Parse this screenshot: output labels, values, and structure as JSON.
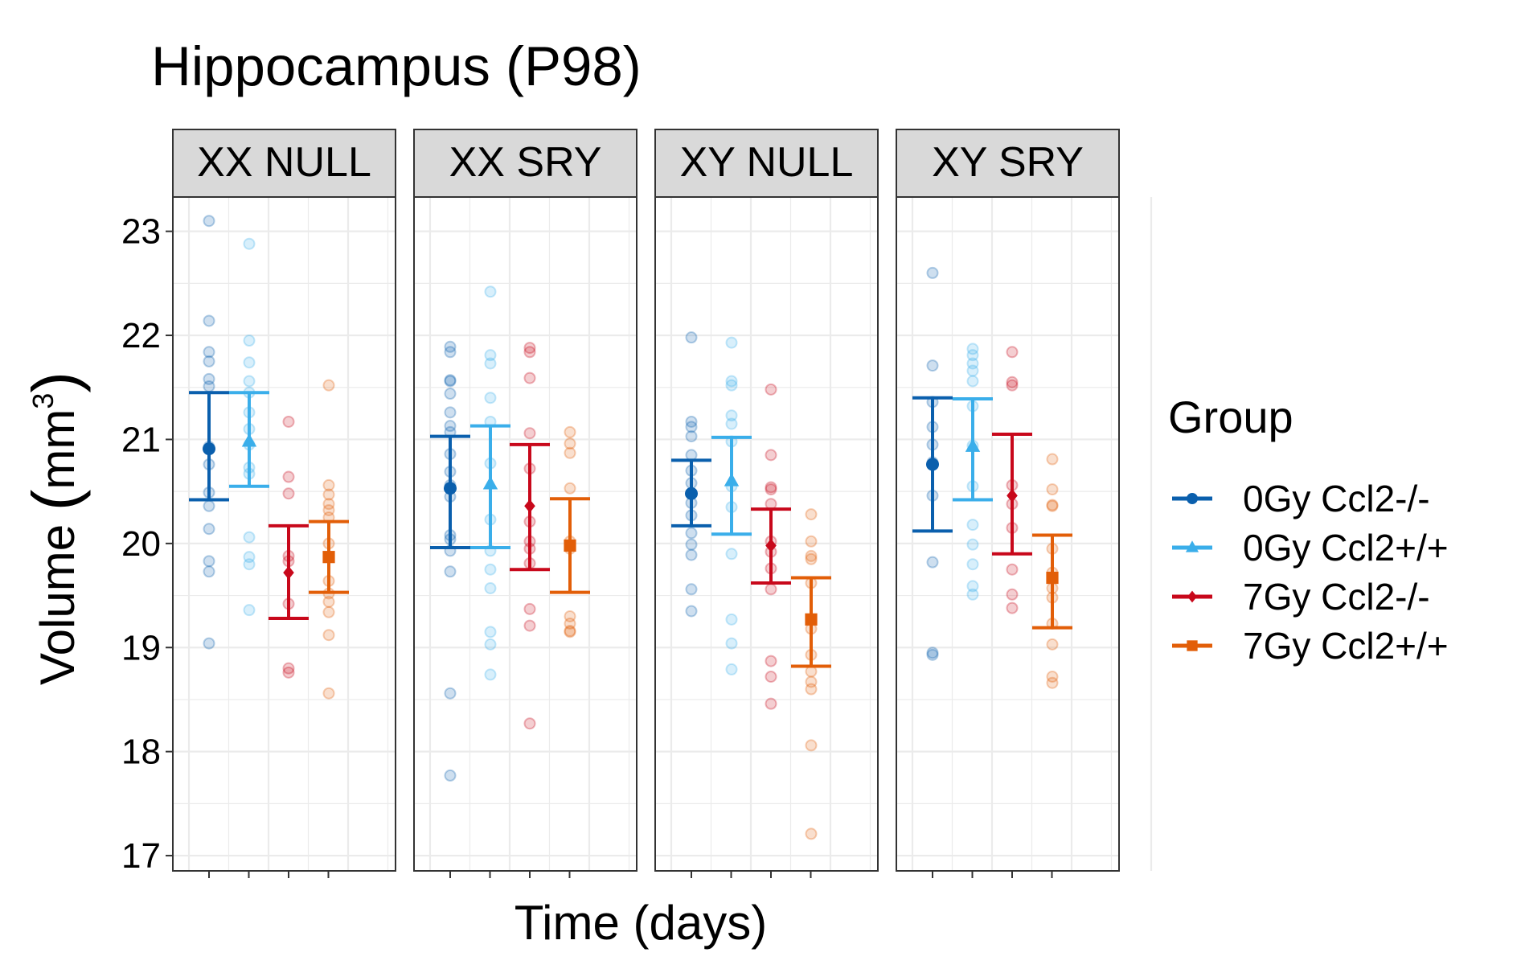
{
  "chart_data": {
    "type": "scatter",
    "title": "Hippocampus (P98)",
    "xlabel": "Time (days)",
    "ylabel": "Volume (mm3)",
    "ylabel_main": "Volume ",
    "ylabel_unit": "mm",
    "ylabel_sup": "3",
    "ylim": [
      16.9,
      23.4
    ],
    "yticks": [
      "17",
      "18",
      "19",
      "20",
      "21",
      "22",
      "23"
    ],
    "grid": true,
    "legend": {
      "title": "Group",
      "position": "right"
    },
    "panels": [
      "XX NULL",
      "XX SRY",
      "XY NULL",
      "XY SRY"
    ],
    "series": [
      {
        "name": "0Gy Ccl2-/-",
        "color": "#0a5fad",
        "marker": "circle"
      },
      {
        "name": "0Gy Ccl2+/+",
        "color": "#3aaeea",
        "marker": "triangle"
      },
      {
        "name": "7Gy Ccl2-/-",
        "color": "#c8081b",
        "marker": "diamond"
      },
      {
        "name": "7Gy Ccl2+/+",
        "color": "#e25e08",
        "marker": "square"
      }
    ],
    "summary": [
      [
        {
          "mean": 20.91,
          "lower": 20.42,
          "upper": 21.45
        },
        {
          "mean": 20.98,
          "lower": 20.55,
          "upper": 21.45
        },
        {
          "mean": 19.72,
          "lower": 19.28,
          "upper": 20.17
        },
        {
          "mean": 19.87,
          "lower": 19.53,
          "upper": 20.21
        }
      ],
      [
        {
          "mean": 20.53,
          "lower": 19.96,
          "upper": 21.03
        },
        {
          "mean": 20.57,
          "lower": 19.96,
          "upper": 21.13
        },
        {
          "mean": 20.36,
          "lower": 19.75,
          "upper": 20.95
        },
        {
          "mean": 19.98,
          "lower": 19.53,
          "upper": 20.43
        }
      ],
      [
        {
          "mean": 20.48,
          "lower": 20.17,
          "upper": 20.8
        },
        {
          "mean": 20.6,
          "lower": 20.09,
          "upper": 21.02
        },
        {
          "mean": 19.98,
          "lower": 19.62,
          "upper": 20.33
        },
        {
          "mean": 19.27,
          "lower": 18.82,
          "upper": 19.67
        }
      ],
      [
        {
          "mean": 20.76,
          "lower": 20.12,
          "upper": 21.4
        },
        {
          "mean": 20.93,
          "lower": 20.42,
          "upper": 21.39
        },
        {
          "mean": 20.46,
          "lower": 19.9,
          "upper": 21.05
        },
        {
          "mean": 19.67,
          "lower": 19.19,
          "upper": 20.08
        }
      ]
    ],
    "points": [
      [
        [
          23.1,
          22.14,
          21.84,
          21.75,
          21.58,
          21.51,
          20.93,
          20.76,
          20.49,
          20.36,
          20.14,
          19.83,
          19.73,
          19.04
        ],
        [
          22.88,
          21.95,
          21.74,
          21.56,
          21.45,
          21.26,
          21.1,
          20.95,
          20.73,
          20.67,
          20.06,
          19.87,
          19.8,
          19.36
        ],
        [
          21.17,
          20.64,
          20.48,
          19.88,
          19.83,
          19.42,
          18.8,
          18.76
        ],
        [
          21.52,
          20.56,
          20.47,
          20.38,
          20.32,
          20.25,
          20.0,
          19.87,
          19.64,
          19.52,
          19.44,
          19.34,
          19.12,
          18.56
        ]
      ],
      [
        [
          21.89,
          21.84,
          21.57,
          21.56,
          21.44,
          21.26,
          21.13,
          21.07,
          20.86,
          20.69,
          20.56,
          20.45,
          20.08,
          20.04,
          19.93,
          19.73,
          18.56,
          17.77
        ],
        [
          22.42,
          21.81,
          21.73,
          21.4,
          21.17,
          20.77,
          20.23,
          19.93,
          19.75,
          19.57,
          19.15,
          19.03,
          18.74
        ],
        [
          21.88,
          21.84,
          21.59,
          21.06,
          20.72,
          20.21,
          20.02,
          19.95,
          19.81,
          19.37,
          19.21,
          18.27
        ],
        [
          21.07,
          20.96,
          20.87,
          20.53,
          20.02,
          19.95,
          19.3,
          19.23,
          19.16,
          19.15
        ]
      ],
      [
        [
          21.98,
          21.17,
          21.12,
          21.03,
          20.85,
          20.7,
          20.58,
          20.39,
          20.27,
          20.1,
          19.99,
          19.89,
          19.56,
          19.35
        ],
        [
          21.93,
          21.56,
          21.52,
          21.23,
          21.15,
          20.98,
          20.55,
          20.35,
          19.9,
          19.27,
          19.04,
          18.79
        ],
        [
          21.48,
          20.85,
          20.54,
          20.52,
          20.38,
          20.02,
          19.92,
          19.76,
          19.56,
          18.87,
          18.72,
          18.46
        ],
        [
          20.28,
          20.02,
          19.88,
          19.85,
          19.62,
          19.18,
          18.93,
          18.77,
          18.67,
          18.6,
          18.06,
          17.21
        ]
      ],
      [
        [
          22.6,
          21.71,
          21.36,
          21.12,
          20.95,
          20.78,
          20.46,
          19.82,
          18.95,
          18.93
        ],
        [
          21.87,
          21.81,
          21.73,
          21.66,
          21.56,
          21.32,
          20.94,
          20.55,
          20.18,
          19.99,
          19.8,
          19.59,
          19.51
        ],
        [
          21.84,
          21.55,
          21.52,
          20.56,
          20.38,
          20.15,
          19.75,
          19.51,
          19.38
        ],
        [
          20.81,
          20.52,
          20.37,
          20.36,
          19.95,
          19.72,
          19.57,
          19.48,
          19.23,
          19.03,
          18.72,
          18.66
        ]
      ]
    ]
  }
}
